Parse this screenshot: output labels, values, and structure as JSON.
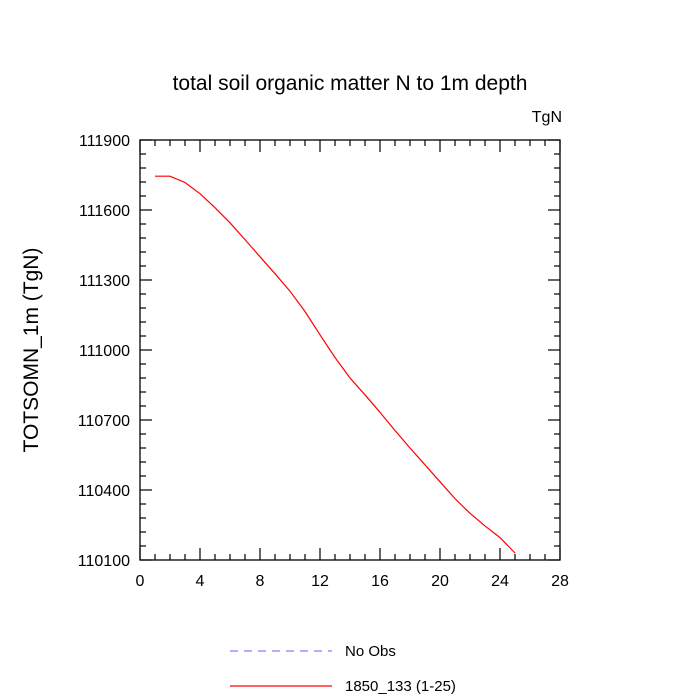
{
  "chart_data": {
    "type": "line",
    "title": "total soil organic matter N to 1m depth",
    "units_label": "TgN",
    "xlabel": "",
    "ylabel": "TOTSOMN_1m  (TgN)",
    "xlim": [
      0,
      28
    ],
    "ylim": [
      110100,
      111900
    ],
    "xticks": [
      0,
      4,
      8,
      12,
      16,
      20,
      24,
      28
    ],
    "yticks": [
      110100,
      110400,
      110700,
      111000,
      111300,
      111600,
      111900
    ],
    "grid": false,
    "legend_position": "bottom-center",
    "series": [
      {
        "name": "No Obs",
        "color": "#8080ff",
        "style": "dashed",
        "x": [],
        "y": []
      },
      {
        "name": "1850_133 (1-25)",
        "color": "#ff0000",
        "style": "solid",
        "x": [
          1,
          2,
          3,
          4,
          5,
          6,
          7,
          8,
          9,
          10,
          11,
          12,
          13,
          14,
          15,
          16,
          17,
          18,
          19,
          20,
          21,
          22,
          23,
          24,
          25
        ],
        "y": [
          111745,
          111745,
          111718,
          111670,
          111610,
          111545,
          111473,
          111400,
          111327,
          111252,
          111165,
          111065,
          110968,
          110880,
          110808,
          110733,
          110655,
          110580,
          110508,
          110435,
          110363,
          110300,
          110246,
          110196,
          110130
        ]
      }
    ]
  }
}
